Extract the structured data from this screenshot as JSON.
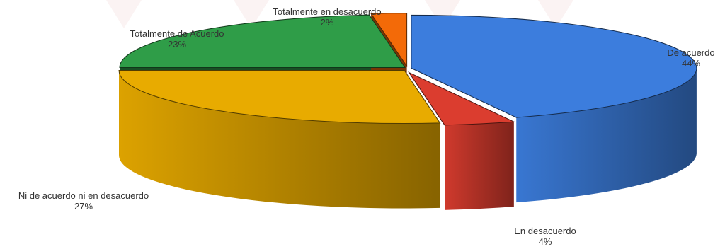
{
  "chart_data": {
    "type": "pie",
    "title": "",
    "categories": [
      "De acuerdo",
      "En desacuerdo",
      "Ni de acuerdo ni en desacuerdo",
      "Totalmente de Acuerdo",
      "Totalmente en desacuerdo"
    ],
    "values": [
      44,
      4,
      27,
      23,
      2
    ],
    "value_labels": [
      "44%",
      "4%",
      "27%",
      "23%",
      "2%"
    ],
    "colors": [
      "#3c7ddd",
      "#db3d2f",
      "#e8ab00",
      "#2f9d48",
      "#f36a08"
    ],
    "style": "3d-exploded",
    "legend": "none"
  }
}
